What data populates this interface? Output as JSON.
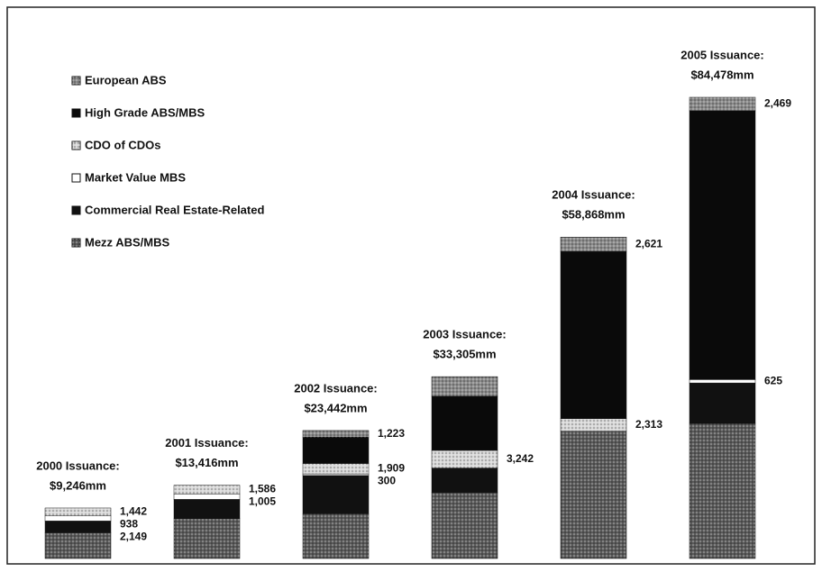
{
  "chart_data": {
    "type": "stacked_bar",
    "categories": [
      "2000 Issuance:",
      "2001 Issuance:",
      "2002 Issuance:",
      "2003 Issuance:",
      "2004 Issuance:",
      "2005 Issuance:"
    ],
    "totals": [
      9246,
      13416,
      23442,
      33305,
      58868,
      84478
    ],
    "total_labels": [
      "$9,246mm",
      "$13,416mm",
      "$23,442mm",
      "$33,305mm",
      "$58,868mm",
      "$84,478mm"
    ],
    "series": [
      {
        "name": "Mezz ABS/MBS",
        "color": "#5a5a5a",
        "pattern": "dots",
        "values": [
          4717,
          7300,
          8200,
          12063,
          23300,
          24750
        ],
        "value_labels": [
          null,
          null,
          null,
          null,
          null,
          null
        ]
      },
      {
        "name": "Commercial Real Estate-Related",
        "color": "#111111",
        "pattern": "solid",
        "values": [
          2149,
          3525,
          7000,
          4500,
          null,
          7400
        ],
        "value_labels": [
          "2,149",
          null,
          null,
          null,
          null,
          null
        ]
      },
      {
        "name": "Market Value MBS",
        "color": "#ffffff",
        "pattern": "solid",
        "values": [
          938,
          1005,
          300,
          null,
          null,
          625
        ],
        "value_labels": [
          "938",
          "1,005",
          "300",
          null,
          null,
          "625"
        ]
      },
      {
        "name": "CDO of CDOs",
        "color": "#d8d8d8",
        "pattern": "dots",
        "values": [
          1442,
          1586,
          1909,
          3242,
          2313,
          null
        ],
        "value_labels": [
          "1,442",
          "1,586",
          "1,909",
          "3,242",
          "2,313",
          null
        ]
      },
      {
        "name": "High Grade ABS/MBS",
        "color": "#0a0a0a",
        "pattern": "solid",
        "values": [
          null,
          null,
          4810,
          9900,
          30634,
          49234
        ],
        "value_labels": [
          null,
          null,
          null,
          null,
          null,
          null
        ]
      },
      {
        "name": "European ABS",
        "color": "#8a8a8a",
        "pattern": "dots",
        "values": [
          null,
          null,
          1223,
          3600,
          2621,
          2469
        ],
        "value_labels": [
          null,
          null,
          "1,223",
          null,
          "2,621",
          "2,469"
        ]
      }
    ]
  }
}
